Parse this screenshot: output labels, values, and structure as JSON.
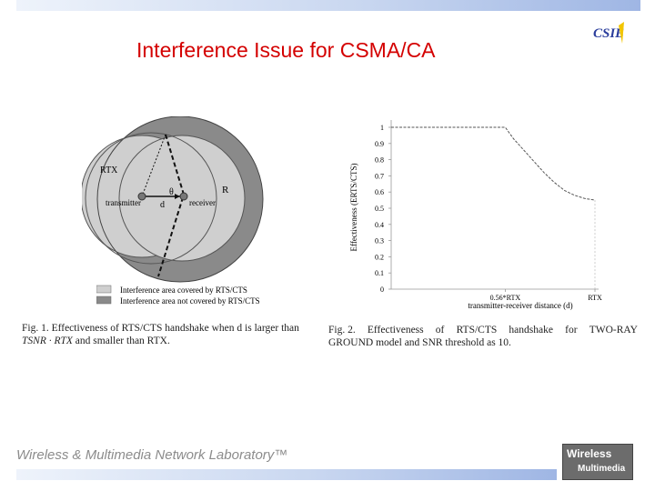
{
  "slide": {
    "title": "Interference Issue for CSMA/CA",
    "footer": "Wireless & Multimedia Network Laboratory™",
    "logo_text": "CSIE",
    "footer_logo_line1": "Wireless",
    "footer_logo_line2": "Multimedia"
  },
  "fig1": {
    "labels": {
      "r_tx": "RTX",
      "r": "R",
      "theta": "θ",
      "d": "d",
      "transmitter": "transmitter",
      "receiver": "receiver"
    },
    "legend": [
      {
        "label": "Interference area covered by RTS/CTS",
        "color": "#cfcfcf"
      },
      {
        "label": "Interference area not covered by RTS/CTS",
        "color": "#8a8a8a"
      }
    ],
    "caption_line1": "Fig. 1.   Effectiveness of RTS/CTS handshake when d is larger than",
    "caption_line2_math": "TSNR · RTX",
    "caption_line2_text": " and smaller than RTX."
  },
  "fig2": {
    "ylabel": "Effectiveness (ERTS/CTS)",
    "xlabel": "transmitter-receiver distance (d)",
    "x_tick_labels": [
      "0.56*RTX",
      "RTX"
    ],
    "y_tick_labels": [
      "0",
      "0.1",
      "0.2",
      "0.3",
      "0.4",
      "0.5",
      "0.6",
      "0.7",
      "0.8",
      "0.9",
      "1"
    ],
    "caption_a": "Fig. 2.",
    "caption_b": "Effectiveness",
    "caption_c": "of",
    "caption_d": "RTS/CTS",
    "caption_e": "handshake",
    "caption_f": "for",
    "caption_g": "TWO-RAY",
    "caption_line2": "GROUND model and SNR threshold as 10."
  },
  "chart_data": {
    "type": "line",
    "ylabel": "Effectiveness (ERTS/CTS)",
    "xlabel": "transmitter-receiver distance (d)",
    "ylim": [
      0,
      1
    ],
    "x_unit": "fraction of RTX",
    "xlim": [
      0,
      1
    ],
    "x_ticks": [
      0.56,
      1.0
    ],
    "x": [
      0,
      0.56,
      0.6,
      0.65,
      0.7,
      0.75,
      0.8,
      0.85,
      0.9,
      0.95,
      1.0
    ],
    "y": [
      1.0,
      1.0,
      0.93,
      0.86,
      0.79,
      0.72,
      0.66,
      0.61,
      0.58,
      0.56,
      0.55
    ]
  }
}
